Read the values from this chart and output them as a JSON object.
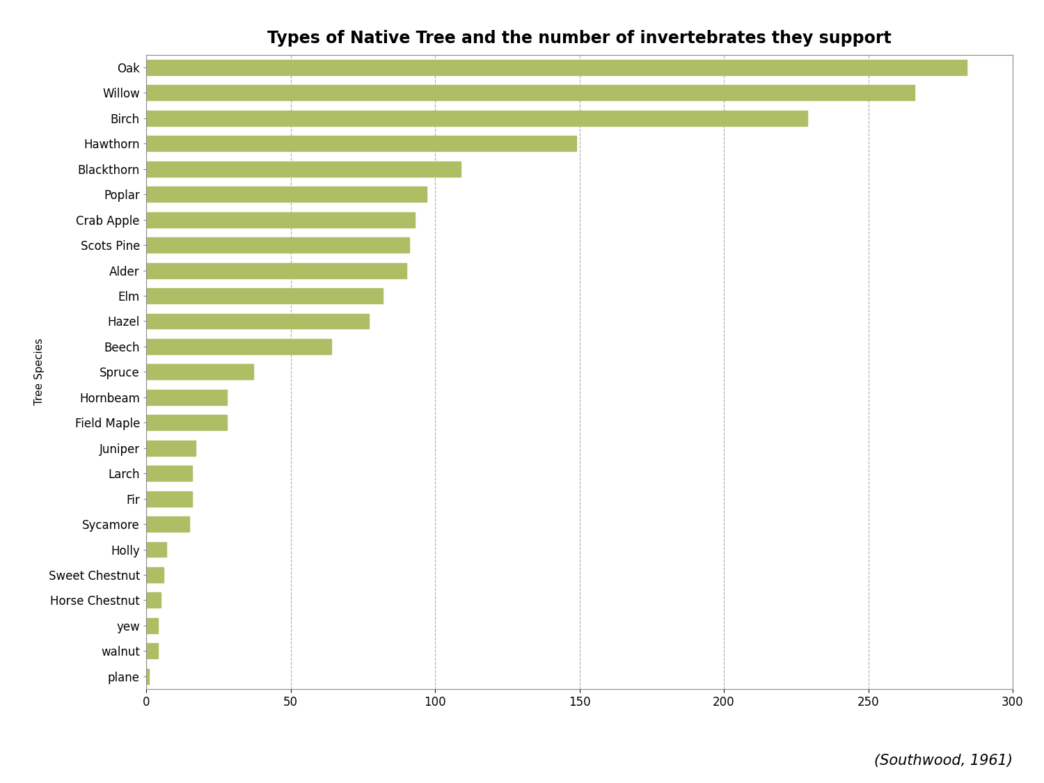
{
  "title": "Types of Native Tree and the number of invertebrates they support",
  "ylabel": "Tree Species",
  "citation": "(Southwood, 1961)",
  "bar_color": "#ADBE64",
  "background_color": "#FFFFFF",
  "categories": [
    "Oak",
    "Willow",
    "Birch",
    "Hawthorn",
    "Blackthorn",
    "Poplar",
    "Crab Apple",
    "Scots Pine",
    "Alder",
    "Elm",
    "Hazel",
    "Beech",
    "Spruce",
    "Hornbeam",
    "Field Maple",
    "Juniper",
    "Larch",
    "Fir",
    "Sycamore",
    "Holly",
    "Sweet Chestnut",
    "Horse Chestnut",
    "yew",
    "walnut",
    "plane"
  ],
  "values": [
    284,
    266,
    229,
    149,
    109,
    97,
    93,
    91,
    90,
    82,
    77,
    64,
    37,
    28,
    28,
    17,
    16,
    16,
    15,
    7,
    6,
    5,
    4,
    4,
    1
  ],
  "xlim": [
    0,
    300
  ],
  "xticks": [
    0,
    50,
    100,
    150,
    200,
    250,
    300
  ],
  "grid_color": "#AAAAAA",
  "title_fontsize": 17,
  "label_fontsize": 12,
  "tick_fontsize": 12,
  "ylabel_fontsize": 11,
  "citation_fontsize": 15,
  "bar_height": 0.6
}
